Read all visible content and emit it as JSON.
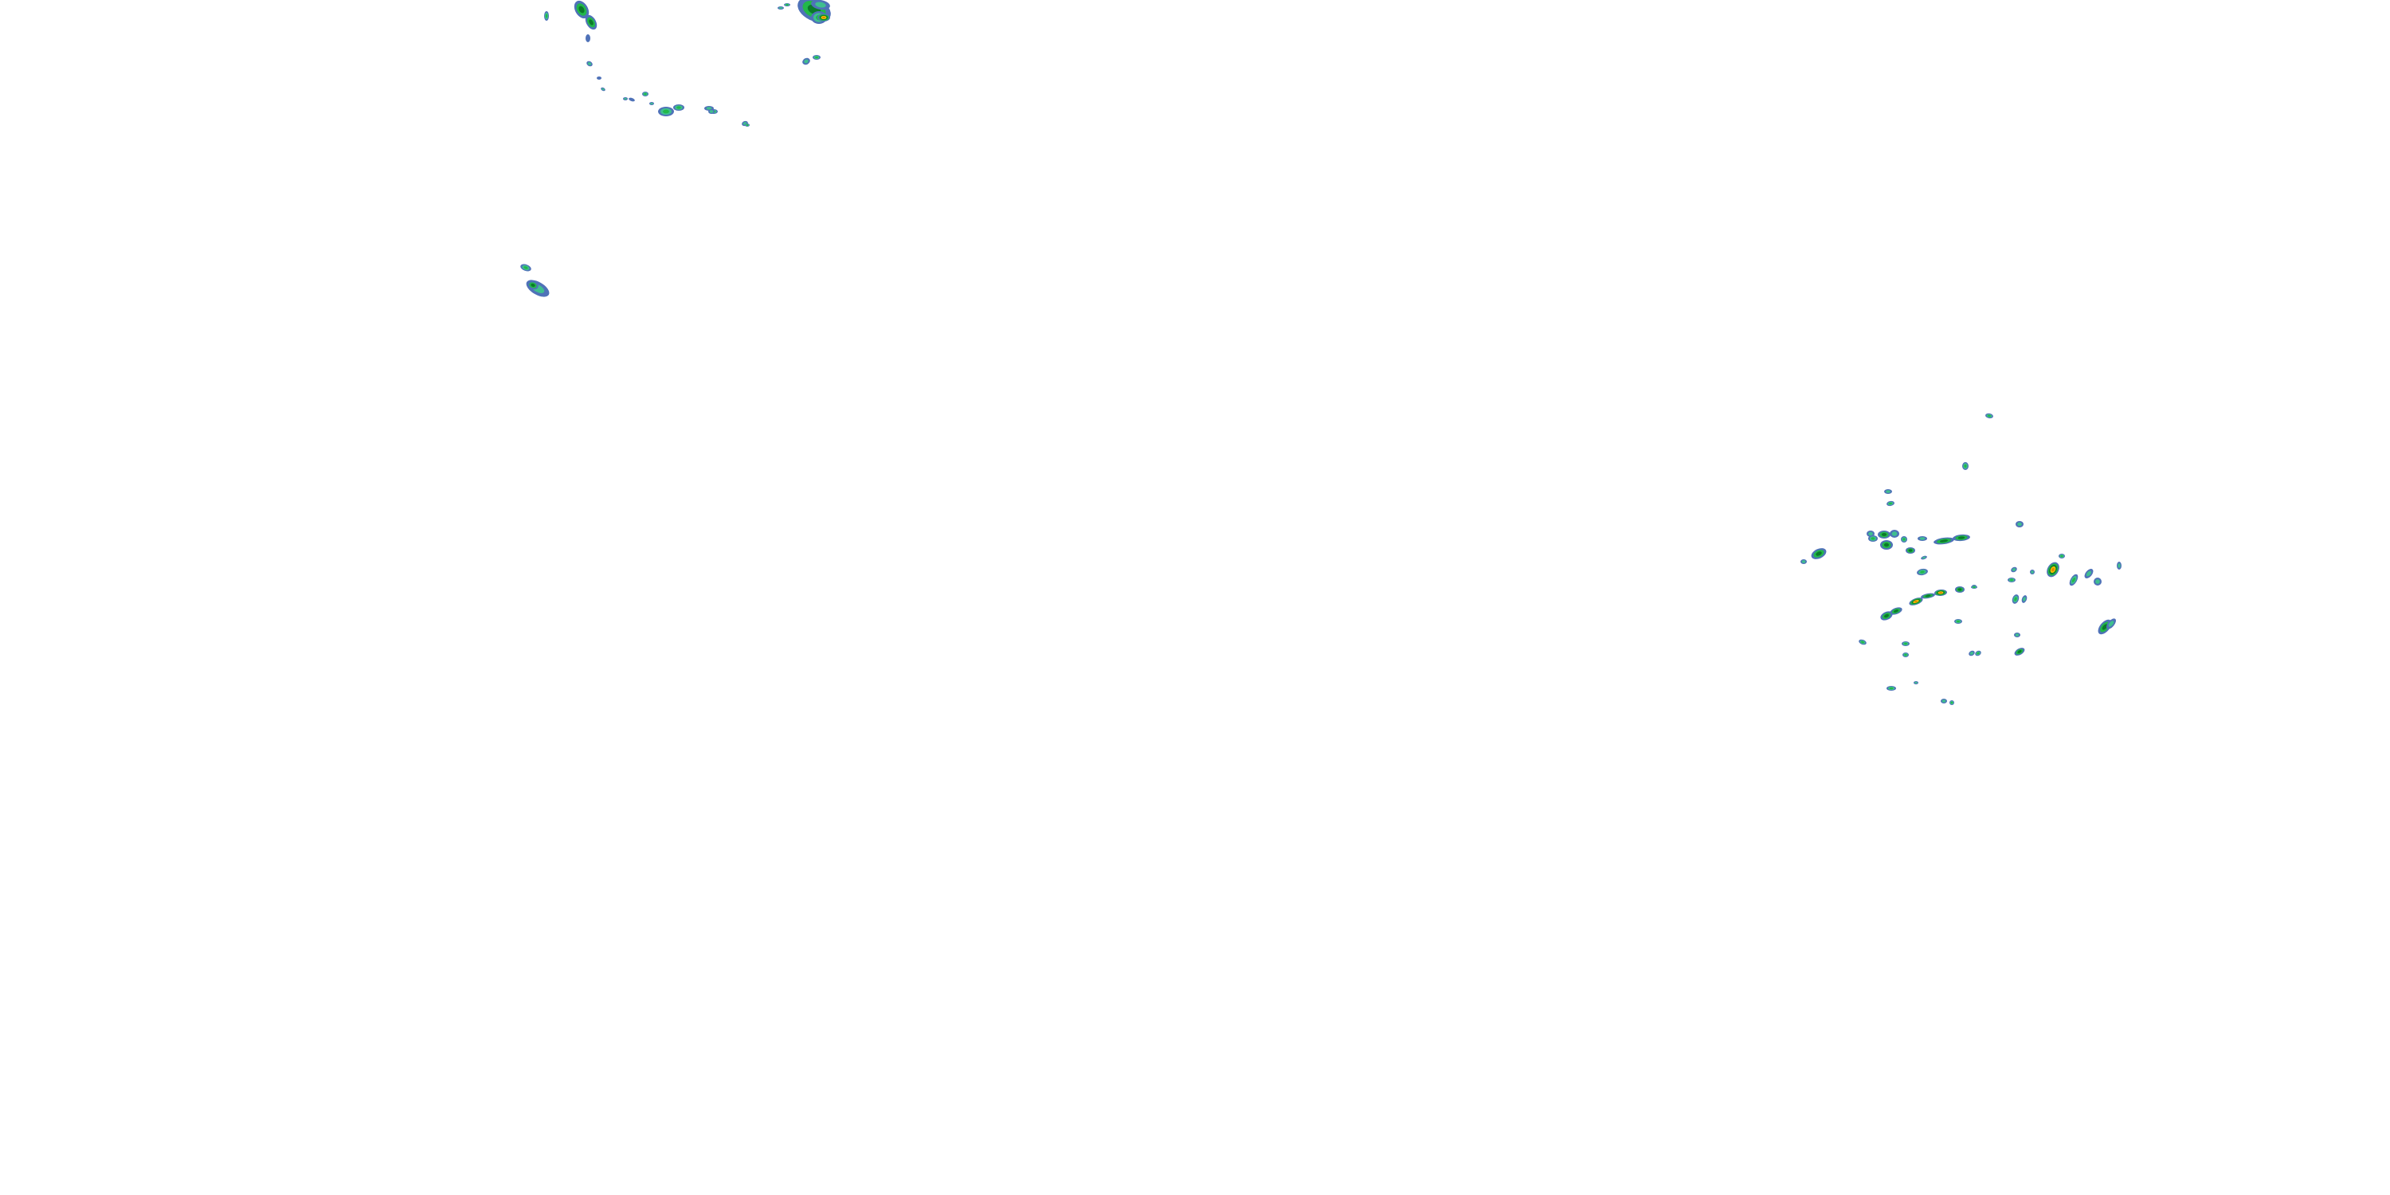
{
  "map": {
    "layer": "radar-reflectivity-overlay",
    "background": "#ffffff",
    "intensity_colors": {
      "light": "#4f72b8",
      "light_moderate": "#3fbf8f",
      "moderate": "#22b84a",
      "heavy": "#0b7a2a",
      "very_heavy": "#f0c400",
      "extreme": "#e08a00"
    }
  }
}
